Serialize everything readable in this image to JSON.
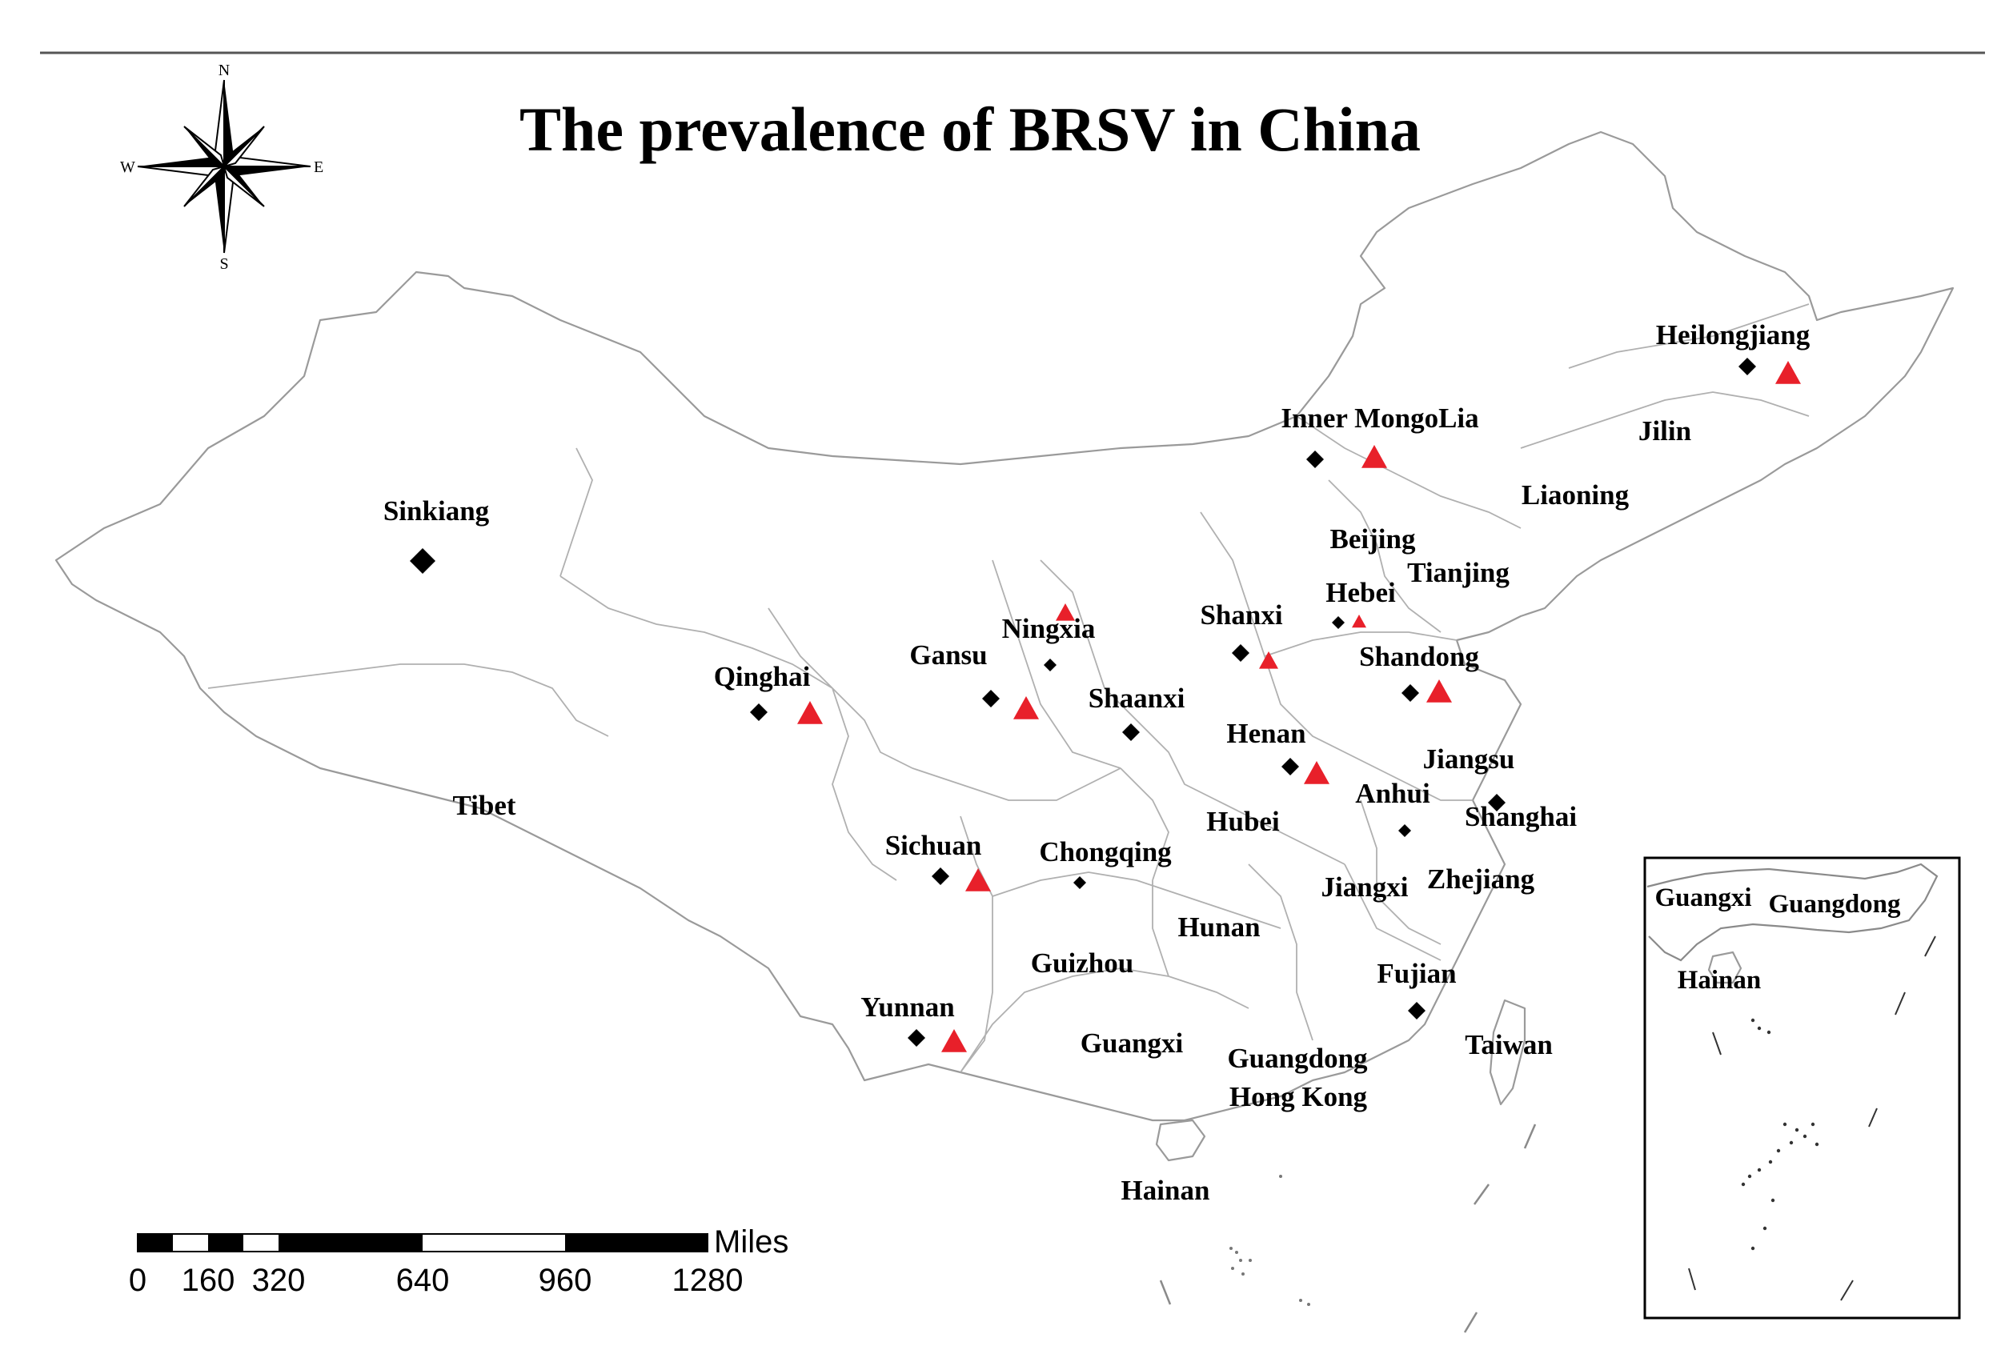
{
  "title": "The prevalence of BRSV in China",
  "compass": {
    "n": "N",
    "s": "S",
    "e": "E",
    "w": "W"
  },
  "scale_bar": {
    "unit": "Miles",
    "ticks": [
      "0",
      "160",
      "320",
      "640",
      "960",
      "1280"
    ]
  },
  "regions": [
    {
      "name": "Heilongjiang"
    },
    {
      "name": "Jilin"
    },
    {
      "name": "Liaoning"
    },
    {
      "name": "Inner MongoLia"
    },
    {
      "name": "Sinkiang"
    },
    {
      "name": "Beijing"
    },
    {
      "name": "Tianjing"
    },
    {
      "name": "Hebei"
    },
    {
      "name": "Shanxi"
    },
    {
      "name": "Ningxia"
    },
    {
      "name": "Gansu"
    },
    {
      "name": "Qinghai"
    },
    {
      "name": "Shandong"
    },
    {
      "name": "Shaanxi"
    },
    {
      "name": "Henan"
    },
    {
      "name": "Jiangsu"
    },
    {
      "name": "Anhui"
    },
    {
      "name": "Shanghai"
    },
    {
      "name": "Tibet"
    },
    {
      "name": "Hubei"
    },
    {
      "name": "Sichuan"
    },
    {
      "name": "Chongqing"
    },
    {
      "name": "Zhejiang"
    },
    {
      "name": "Jiangxi"
    },
    {
      "name": "Hunan"
    },
    {
      "name": "Guizhou"
    },
    {
      "name": "Fujian"
    },
    {
      "name": "Yunnan"
    },
    {
      "name": "Guangxi"
    },
    {
      "name": "Taiwan"
    },
    {
      "name": "Guangdong"
    },
    {
      "name": "Hong Kong"
    },
    {
      "name": "Hainan"
    }
  ],
  "inset_labels": [
    {
      "name": "Guangxi"
    },
    {
      "name": "Guangdong"
    },
    {
      "name": "Hainan"
    }
  ],
  "markers": {
    "diamond_color": "#000000",
    "triangle_color": "#e8202a",
    "diamonds": [
      "Heilongjiang",
      "Inner MongoLia",
      "Sinkiang",
      "Hebei",
      "Shanxi",
      "Ningxia",
      "Gansu",
      "Qinghai",
      "Shandong",
      "Shaanxi",
      "Henan",
      "Jiangsu",
      "Anhui",
      "Sichuan",
      "Chongqing",
      "Fujian",
      "Yunnan"
    ],
    "triangles": [
      "Heilongjiang",
      "Inner MongoLia",
      "Hebei",
      "Shanxi",
      "Ningxia",
      "Gansu",
      "Qinghai",
      "Shandong",
      "Henan",
      "Sichuan",
      "Yunnan"
    ]
  }
}
